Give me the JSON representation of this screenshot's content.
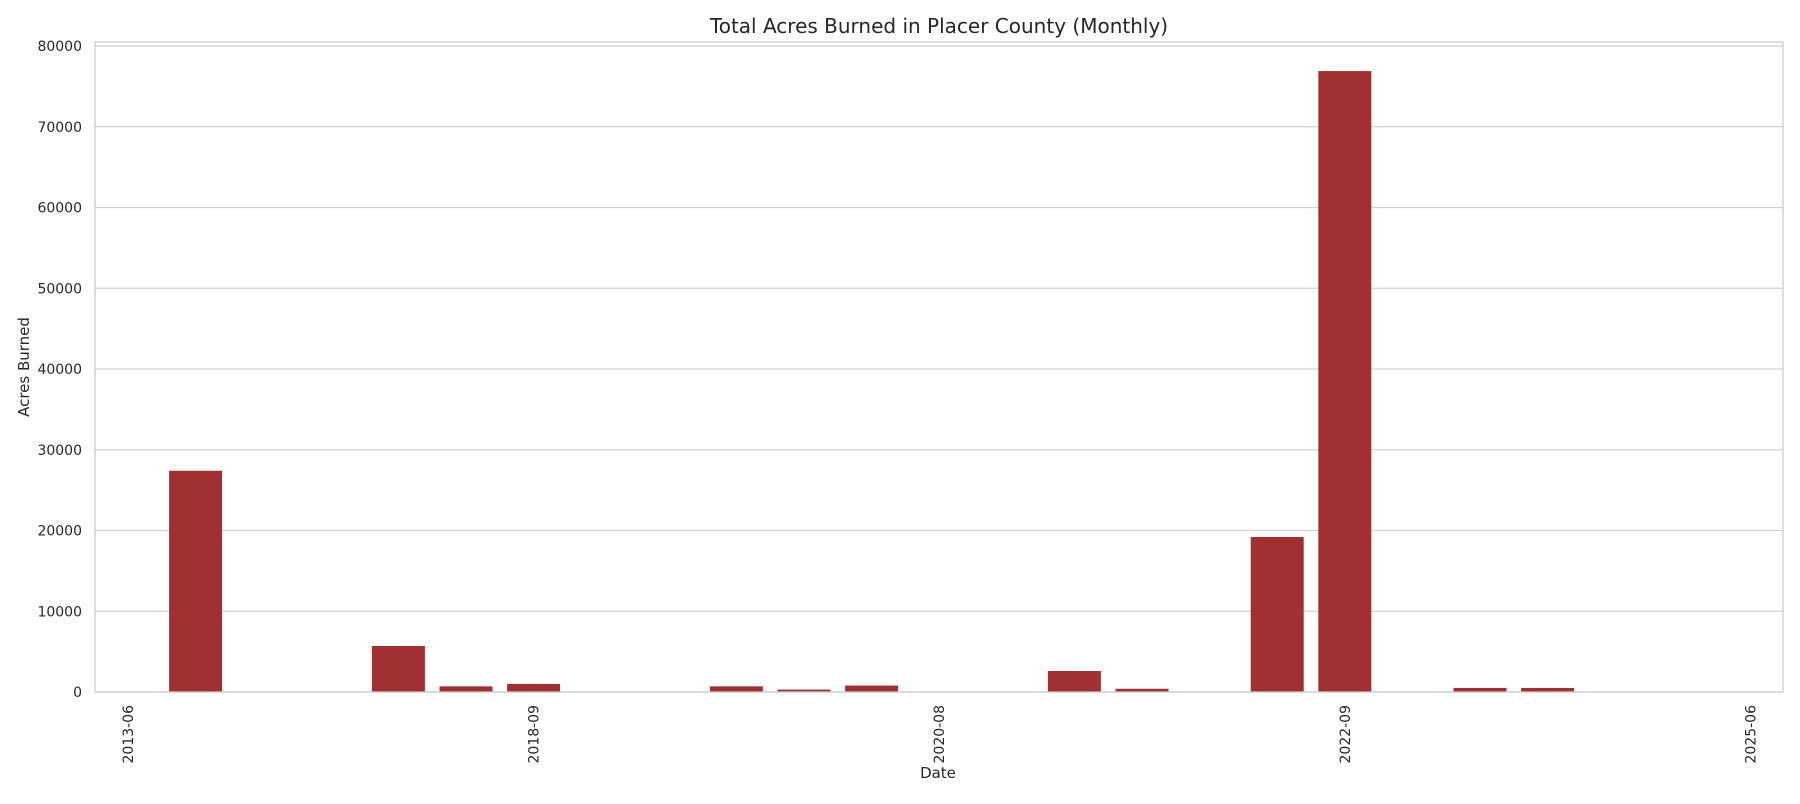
{
  "chart_data": {
    "type": "bar",
    "title": "Total Acres Burned in Placer County (Monthly)",
    "xlabel": "Date",
    "ylabel": "Acres Burned",
    "ylim": [
      0,
      80500
    ],
    "yticks": [
      0,
      10000,
      20000,
      30000,
      40000,
      50000,
      60000,
      70000,
      80000
    ],
    "x_tick_labels": [
      "2013-06",
      "2018-09",
      "2020-08",
      "2022-09",
      "2025-06"
    ],
    "grid": "horizontal",
    "bar_color": "#a03032",
    "categories": [
      "2013-06",
      "",
      "",
      "",
      "",
      "",
      "2018-09",
      "",
      "",
      "",
      "",
      "",
      "2020-08",
      "",
      "",
      "",
      "",
      "",
      "2022-09",
      "",
      "",
      "",
      "",
      "",
      "2025-06"
    ],
    "values": [
      0,
      27400,
      0,
      0,
      5700,
      700,
      1000,
      0,
      0,
      700,
      300,
      800,
      0,
      0,
      2600,
      400,
      0,
      19200,
      76900,
      0,
      500,
      500,
      0,
      0,
      0
    ]
  }
}
